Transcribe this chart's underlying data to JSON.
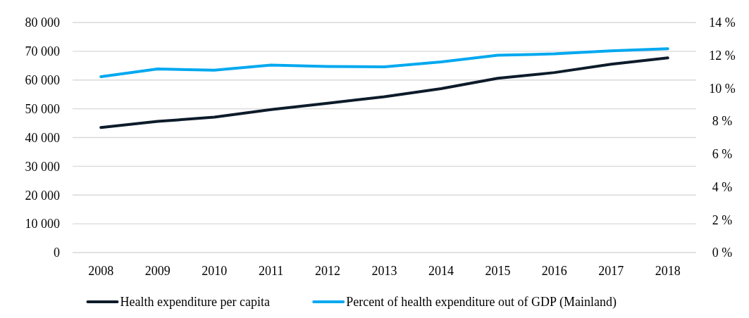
{
  "chart_data": {
    "type": "line",
    "categories": [
      "2008",
      "2009",
      "2010",
      "2011",
      "2012",
      "2013",
      "2014",
      "2015",
      "2016",
      "2017",
      "2018"
    ],
    "series": [
      {
        "name": "Health expenditure per capita",
        "color": "#0d1b2a",
        "values": [
          43500,
          45600,
          47100,
          49700,
          51900,
          54200,
          57000,
          60600,
          62600,
          65500,
          67700
        ]
      },
      {
        "name": "Percent of health expenditure out of GDP (Mainland)",
        "color": "#00a8f0",
        "axis": "y2",
        "values": [
          10.7,
          11.17,
          11.1,
          11.41,
          11.32,
          11.3,
          11.6,
          12.01,
          12.09,
          12.28,
          12.41
        ]
      }
    ],
    "ylim": [
      0,
      80000
    ],
    "yticks": [
      0,
      {
        "value": 10000,
        "label": "10 000"
      },
      {
        "value": 20000,
        "label": "20 000"
      },
      {
        "value": 30000,
        "label": "30 000"
      },
      {
        "value": 40000,
        "label": "40 000"
      },
      {
        "value": 50000,
        "label": "50 000"
      },
      {
        "value": 60000,
        "label": "60 000"
      },
      {
        "value": 70000,
        "label": "70 000"
      },
      {
        "value": 80000,
        "label": "80 000"
      }
    ],
    "y2lim": [
      0,
      14
    ],
    "y2ticks": [
      {
        "value": 0,
        "label": "0 %"
      },
      {
        "value": 2,
        "label": "2 %"
      },
      {
        "value": 4,
        "label": "4 %"
      },
      {
        "value": 6,
        "label": "6 %"
      },
      {
        "value": 8,
        "label": "8 %"
      },
      {
        "value": 10,
        "label": "10 %"
      },
      {
        "value": 12,
        "label": "12 %"
      },
      {
        "value": 14,
        "label": "14 %"
      }
    ],
    "grid": "y",
    "legend": "bottom"
  }
}
